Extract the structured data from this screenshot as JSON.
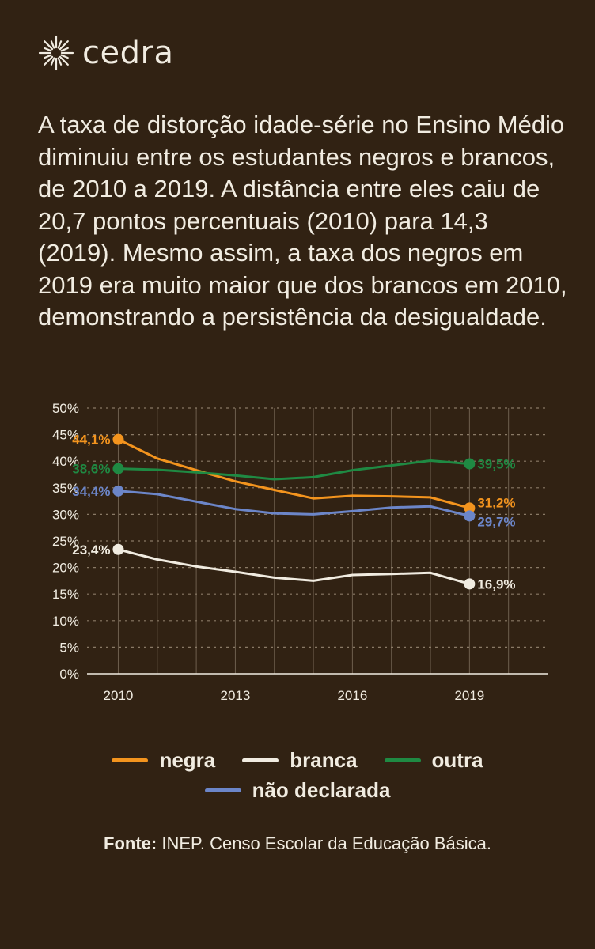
{
  "brand": {
    "name": "cedra",
    "logo_icon": "sun-burst-icon"
  },
  "headline": "A taxa de distorção idade-série no Ensino Médio diminuiu entre os estudantes negros e brancos, de 2010 a 2019. A distância entre eles caiu de 20,7 pontos percentuais (2010) para 14,3 (2019). Mesmo assim, a taxa dos negros em 2019 era muito maior que dos brancos em 2010, demonstrando a persistência da desigualdade.",
  "chart_data": {
    "type": "line",
    "x": [
      2010,
      2011,
      2012,
      2013,
      2014,
      2015,
      2016,
      2017,
      2018,
      2019
    ],
    "xticks": [
      2010,
      2013,
      2016,
      2019
    ],
    "xtick_labels": [
      "2010",
      "2013",
      "2016",
      "2019"
    ],
    "ylim": [
      0,
      50
    ],
    "yticks": [
      0,
      5,
      10,
      15,
      20,
      25,
      30,
      35,
      40,
      45,
      50
    ],
    "ytick_labels": [
      "0%",
      "5%",
      "10%",
      "15%",
      "20%",
      "25%",
      "30%",
      "35%",
      "40%",
      "45%",
      "50%"
    ],
    "grid": "horizontal dotted, vertical solid",
    "series": [
      {
        "name": "negra",
        "color": "#f3941e",
        "values": [
          44.1,
          40.5,
          38.3,
          36.2,
          34.6,
          33.0,
          33.5,
          33.4,
          33.2,
          31.2
        ],
        "start_label": "44,1%",
        "end_label": "31,2%"
      },
      {
        "name": "branca",
        "color": "#f1ece1",
        "values": [
          23.4,
          21.5,
          20.2,
          19.2,
          18.1,
          17.5,
          18.6,
          18.8,
          19.0,
          16.9
        ],
        "start_label": "23,4%",
        "end_label": "16,9%"
      },
      {
        "name": "outra",
        "color": "#1f8a43",
        "values": [
          38.6,
          38.4,
          37.9,
          37.3,
          36.6,
          37.0,
          38.3,
          39.2,
          40.1,
          39.5
        ],
        "start_label": "38,6%",
        "end_label": "39,5%"
      },
      {
        "name": "não declarada",
        "color": "#6c86c9",
        "values": [
          34.4,
          33.8,
          32.4,
          31.0,
          30.2,
          30.0,
          30.6,
          31.3,
          31.5,
          29.7
        ],
        "start_label": "34,4%",
        "end_label": "29,7%"
      }
    ]
  },
  "legend": {
    "items": [
      {
        "label": "negra",
        "color": "#f3941e"
      },
      {
        "label": "branca",
        "color": "#f1ece1"
      },
      {
        "label": "outra",
        "color": "#1f8a43"
      },
      {
        "label": "não declarada",
        "color": "#6c86c9"
      }
    ]
  },
  "source": {
    "prefix": "Fonte:",
    "text": " INEP. Censo Escolar da Educação Básica."
  }
}
